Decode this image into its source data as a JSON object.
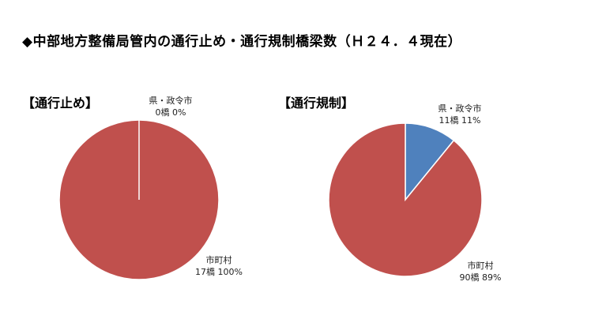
{
  "page_title": "◆中部地方整備局管内の通行止め・通行規制橋梁数（Ｈ２４．４現在）",
  "colors": {
    "municipal": "#c0504d",
    "prefecture": "#4f81bd"
  },
  "chart_data": [
    {
      "type": "pie",
      "title": "【通行止め】",
      "slices": [
        {
          "name": "県・政令市",
          "value": 0,
          "label": "0橋 0%"
        },
        {
          "name": "市町村",
          "value": 17,
          "label": "17橋 100%"
        }
      ]
    },
    {
      "type": "pie",
      "title": "【通行規制】",
      "slices": [
        {
          "name": "県・政令市",
          "value": 11,
          "label": "11橋 11%"
        },
        {
          "name": "市町村",
          "value": 90,
          "label": "90橋 89%"
        }
      ]
    }
  ]
}
